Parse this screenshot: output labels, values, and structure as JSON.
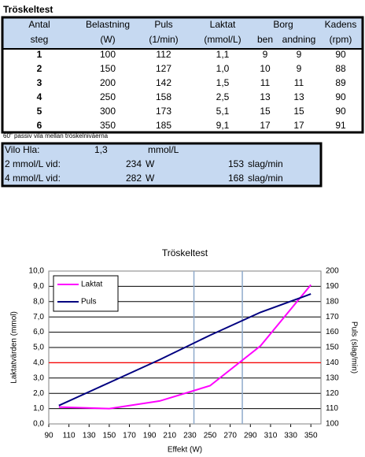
{
  "title": "Tröskeltest",
  "table": {
    "header": [
      [
        "Antal",
        "Belastning",
        "Puls",
        "Laktat",
        "Borg",
        "Kadens"
      ],
      [
        "steg",
        "(W)",
        "(1/min)",
        "(mmol/L)",
        "ben",
        "andning",
        "(rpm)"
      ]
    ],
    "rows": [
      [
        "1",
        "100",
        "112",
        "1,1",
        "9",
        "9",
        "90"
      ],
      [
        "2",
        "150",
        "127",
        "1,0",
        "10",
        "9",
        "88"
      ],
      [
        "3",
        "200",
        "142",
        "1,5",
        "11",
        "11",
        "89"
      ],
      [
        "4",
        "250",
        "158",
        "2,5",
        "13",
        "13",
        "90"
      ],
      [
        "5",
        "300",
        "173",
        "5,1",
        "15",
        "15",
        "90"
      ],
      [
        "6",
        "350",
        "185",
        "9,1",
        "17",
        "17",
        "91"
      ]
    ]
  },
  "footnote": "60\" passiv vila mellan tröskelnivåerna",
  "summary": {
    "rows": [
      [
        "Vilo Hla:",
        "1,3",
        "mmol/L"
      ],
      [
        "2 mmol/L vid:",
        "234",
        "W",
        "153",
        "slag/min"
      ],
      [
        "4 mmol/L vid:",
        "282",
        "W",
        "168",
        "slag/min"
      ]
    ]
  },
  "chart": {
    "type": "line",
    "title": "Tröskeltest",
    "x_label": "Effekt (W)",
    "y_label": "Laktatvärden (mmol)",
    "y2_label": "Puls (slag/min)",
    "x": [
      100,
      150,
      200,
      250,
      300,
      350
    ],
    "series": [
      {
        "name": "Laktat",
        "color": "#ff00ff",
        "values": [
          1.1,
          1.0,
          1.5,
          2.5,
          5.1,
          9.1
        ]
      },
      {
        "name": "Puls",
        "color": "#000080",
        "axis": "y2",
        "values": [
          112,
          127,
          142,
          158,
          173,
          185
        ]
      }
    ],
    "xlim": [
      90,
      360
    ],
    "xticks": [
      90,
      110,
      130,
      150,
      170,
      190,
      210,
      230,
      250,
      270,
      290,
      310,
      330,
      350
    ],
    "ylim": [
      0,
      10
    ],
    "yticks": [
      {
        "value": 0,
        "label": "0,0"
      },
      {
        "value": 1,
        "label": "1,0"
      },
      {
        "value": 2,
        "label": "2,0"
      },
      {
        "value": 3,
        "label": "3,0"
      },
      {
        "value": 4,
        "label": "4,0"
      },
      {
        "value": 5,
        "label": "5,0"
      },
      {
        "value": 6,
        "label": "6,0"
      },
      {
        "value": 7,
        "label": "7,0"
      },
      {
        "value": 8,
        "label": "8,0"
      },
      {
        "value": 9,
        "label": "9,0"
      },
      {
        "value": 10,
        "label": "10,0"
      }
    ],
    "y2lim": [
      100,
      200
    ],
    "y2ticks": [
      100,
      110,
      120,
      130,
      140,
      150,
      160,
      170,
      180,
      190,
      200
    ],
    "grid": true,
    "vlines": [
      234,
      282
    ],
    "vline_color": "#8eaacc",
    "hline": 4,
    "hline_color": "#ff0000",
    "legend": "top-left"
  }
}
